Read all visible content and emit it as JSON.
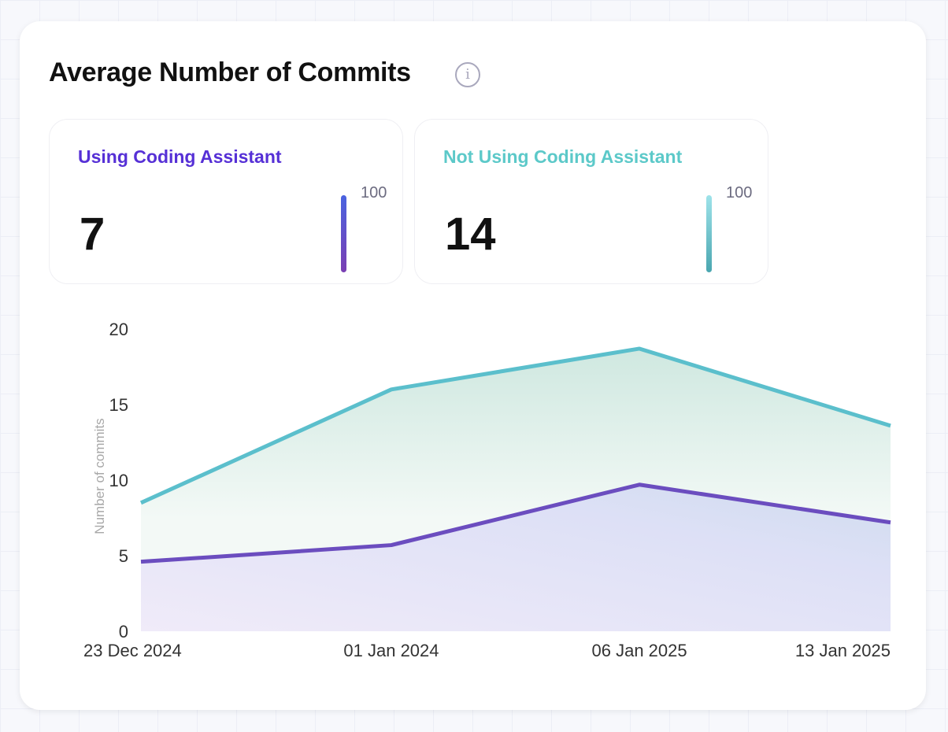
{
  "title": "Average Number of Commits",
  "info_icon": "info-circle-icon",
  "stats": [
    {
      "label": "Using Coding Assistant",
      "value": "7",
      "scale_max": "100",
      "color": "#5630d6",
      "bar_gradient": [
        "#4a63e0",
        "#7a3fb3"
      ]
    },
    {
      "label": "Not Using Coding Assistant",
      "value": "14",
      "scale_max": "100",
      "color": "#5cc9c9",
      "bar_gradient": [
        "#9ee3ea",
        "#4aa6b0"
      ]
    }
  ],
  "chart_data": {
    "type": "area",
    "ylabel": "Number of commits",
    "xlabel": "",
    "categories": [
      "23 Dec 2024",
      "01 Jan 2024",
      "06 Jan 2025",
      "13 Jan 2025"
    ],
    "yticks": [
      0,
      5,
      10,
      15,
      20
    ],
    "ylim": [
      0,
      20
    ],
    "grid": false,
    "series": [
      {
        "name": "Not Using Coding Assistant",
        "values": [
          8.5,
          16.0,
          18.7,
          13.6
        ],
        "color": "#5bbfcc"
      },
      {
        "name": "Using Coding Assistant",
        "values": [
          4.6,
          5.7,
          9.7,
          7.2
        ],
        "color": "#6b4dbf"
      }
    ]
  }
}
